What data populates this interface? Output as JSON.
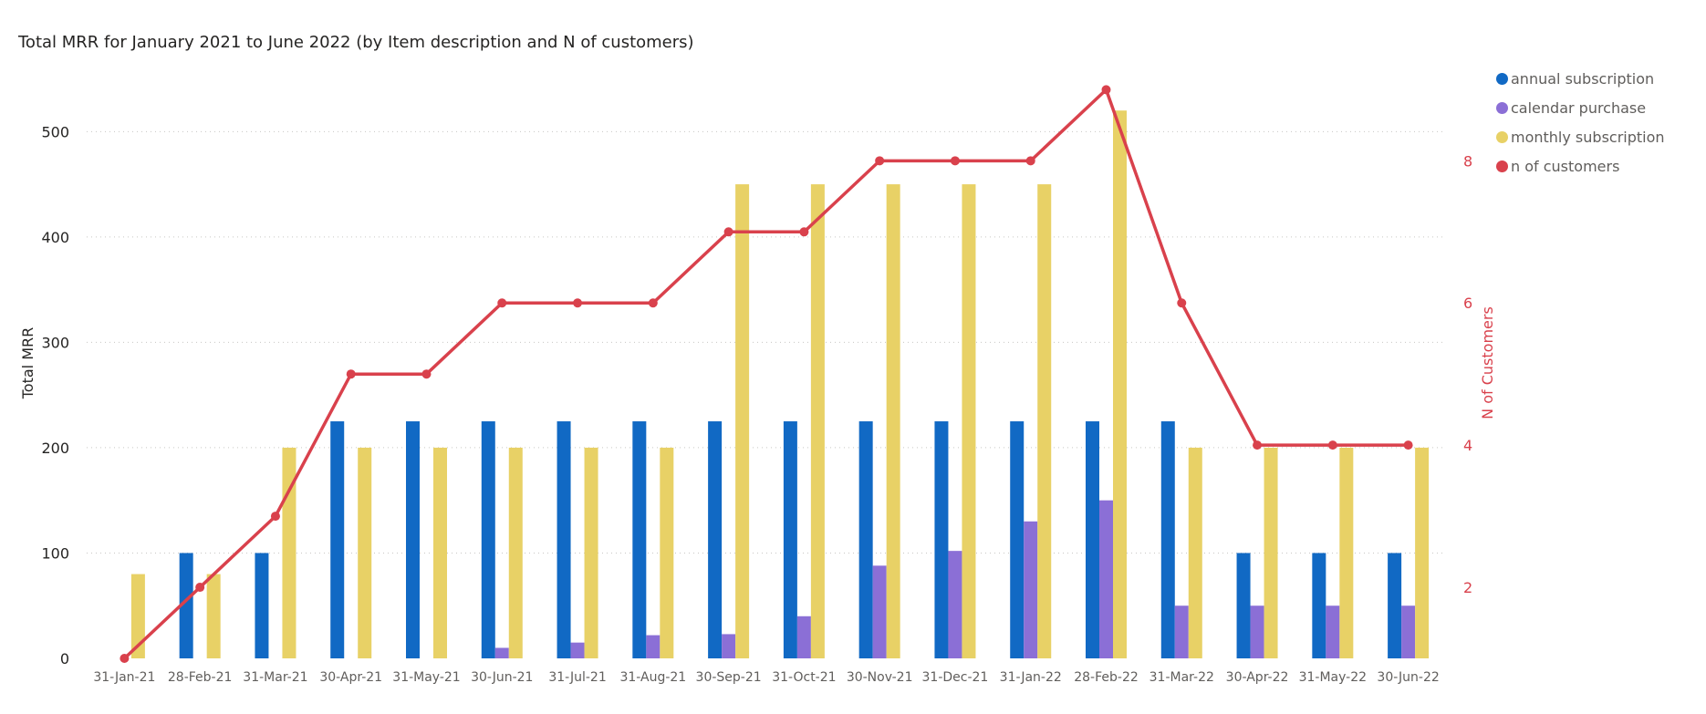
{
  "chart_data": {
    "type": "bar",
    "title": "Total MRR for January 2021 to June 2022 (by Item description and N of customers)",
    "ylabel": "Total MRR",
    "y2label": "N of Customers",
    "ylim": [
      0,
      560
    ],
    "y2lim": [
      1,
      9.3
    ],
    "yticks": [
      0,
      100,
      200,
      300,
      400,
      500
    ],
    "y2ticks": [
      2,
      4,
      6,
      8
    ],
    "grid": true,
    "legend_position": "top-right",
    "categories": [
      "31-Jan-21",
      "28-Feb-21",
      "31-Mar-21",
      "30-Apr-21",
      "31-May-21",
      "30-Jun-21",
      "31-Jul-21",
      "31-Aug-21",
      "30-Sep-21",
      "31-Oct-21",
      "30-Nov-21",
      "31-Dec-21",
      "31-Jan-22",
      "28-Feb-22",
      "31-Mar-22",
      "30-Apr-22",
      "31-May-22",
      "30-Jun-22"
    ],
    "series": [
      {
        "name": "annual subscription",
        "type": "bar",
        "color": "#1169C4",
        "values": [
          0,
          100,
          100,
          225,
          225,
          225,
          225,
          225,
          225,
          225,
          225,
          225,
          225,
          225,
          225,
          100,
          100,
          100
        ]
      },
      {
        "name": "calendar purchase",
        "type": "bar",
        "color": "#8B6FD6",
        "values": [
          0,
          0,
          0,
          0,
          0,
          10,
          15,
          22,
          23,
          40,
          88,
          102,
          130,
          150,
          50,
          50,
          50,
          50
        ]
      },
      {
        "name": "monthly subscription",
        "type": "bar",
        "color": "#E8D166",
        "values": [
          80,
          80,
          200,
          200,
          200,
          200,
          200,
          200,
          450,
          450,
          450,
          450,
          450,
          520,
          200,
          200,
          200,
          200
        ]
      },
      {
        "name": "n of customers",
        "type": "line",
        "axis": "right",
        "color": "#D9414C",
        "values": [
          1,
          2,
          3,
          5,
          5,
          6,
          6,
          6,
          7,
          7,
          8,
          8,
          8,
          9,
          6,
          4,
          4,
          4
        ]
      }
    ]
  }
}
